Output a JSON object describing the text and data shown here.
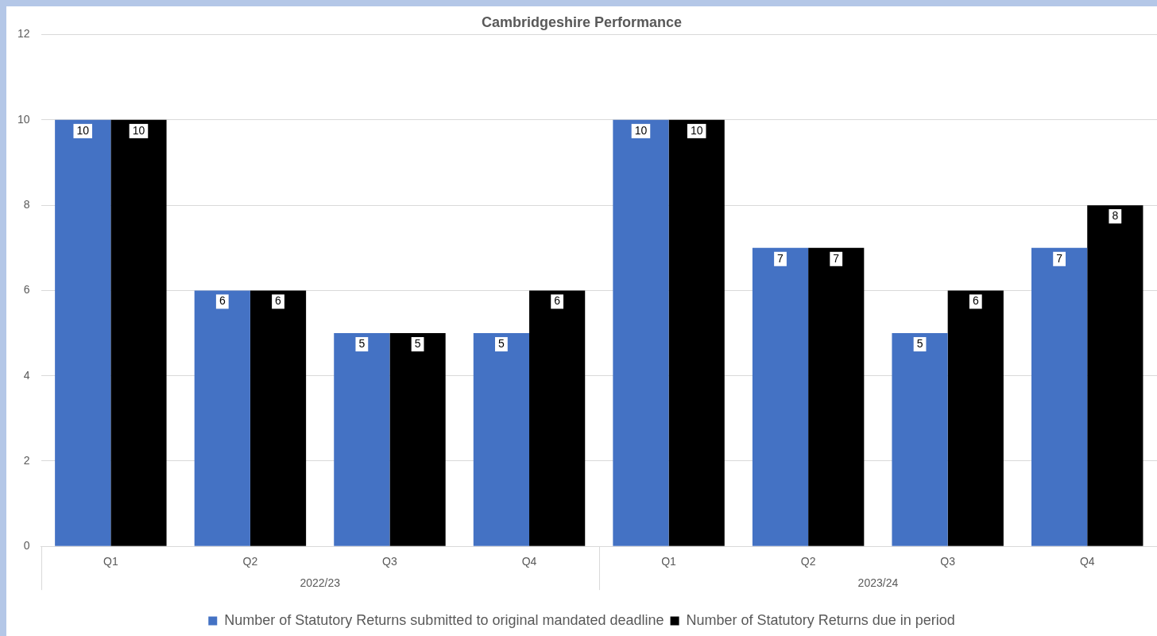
{
  "chart_data": {
    "type": "bar",
    "title": "Cambridgeshire Performance",
    "categories": [
      "Q1",
      "Q2",
      "Q3",
      "Q4",
      "Q1",
      "Q2",
      "Q3",
      "Q4"
    ],
    "series": [
      {
        "name": "Number of Statutory Returns submitted to original mandated deadline",
        "color": "#4472c4",
        "values": [
          10,
          6,
          5,
          5,
          10,
          7,
          5,
          7
        ]
      },
      {
        "name": "Number of Statutory Returns due in period",
        "color": "#000000",
        "values": [
          10,
          6,
          5,
          6,
          10,
          7,
          6,
          8
        ]
      }
    ],
    "annotations": [
      "2022/23",
      "2023/24"
    ],
    "ylim": [
      0,
      12
    ],
    "yticks": [
      0,
      2,
      4,
      6,
      8,
      10,
      12
    ],
    "grid": "y",
    "legend": "bottom",
    "data_labels": true
  }
}
